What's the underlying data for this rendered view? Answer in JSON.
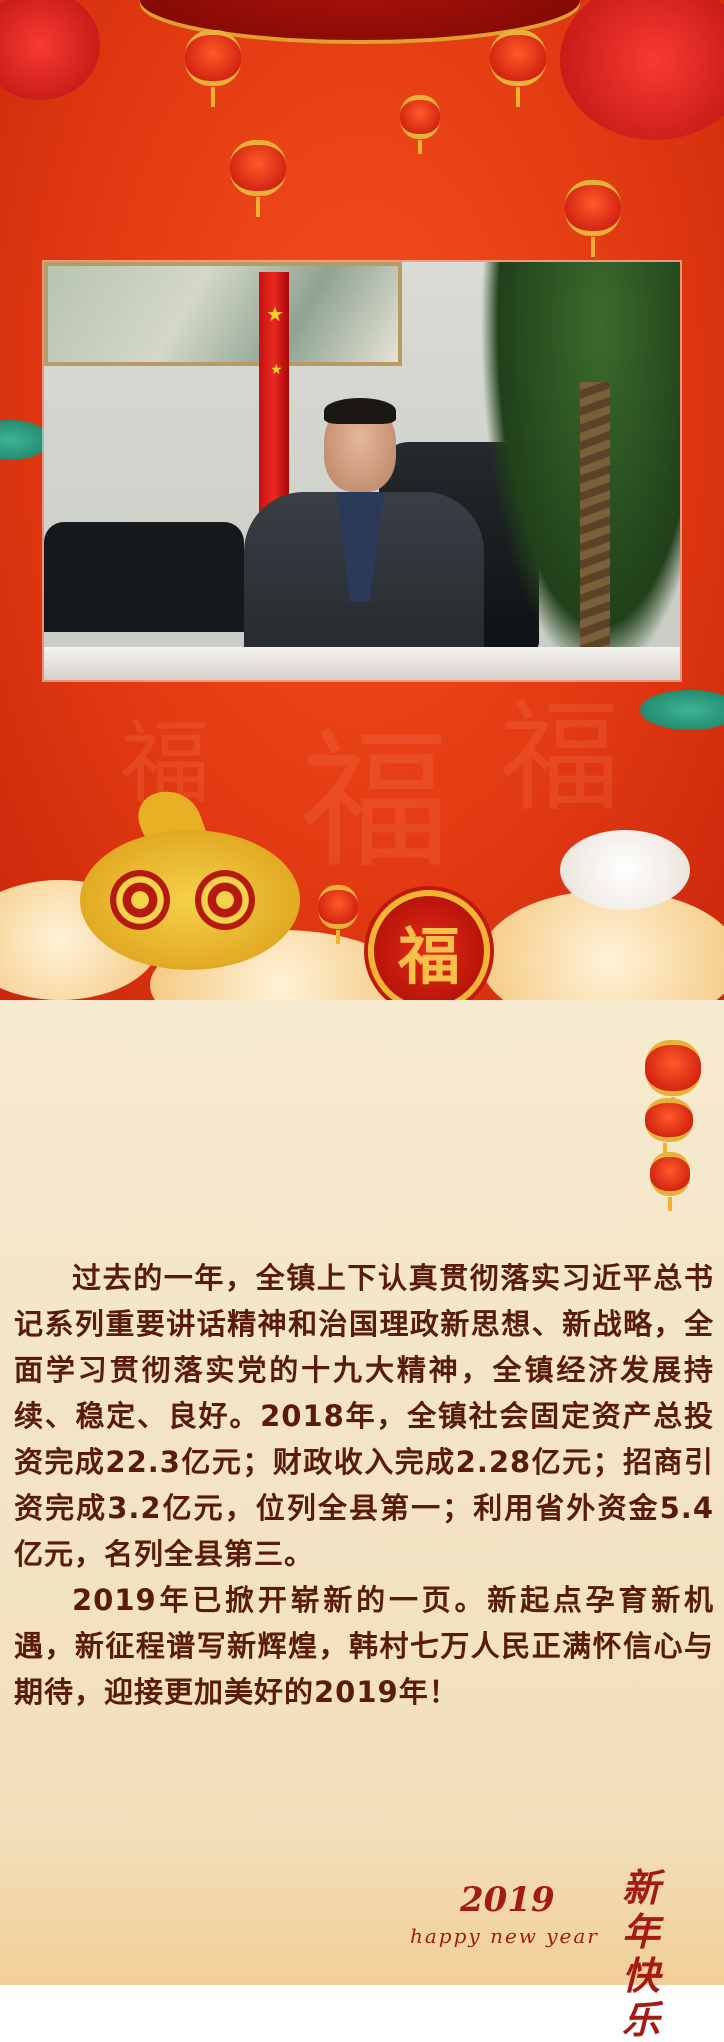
{
  "badge": {
    "fu_char": "福"
  },
  "article": {
    "paragraph_1": "过去的一年，全镇上下认真贯彻落实习近平总书记系列重要讲话精神和治国理政新思想、新战略，全面学习贯彻落实党的十九大精神，全镇经济发展持续、稳定、良好。2018年，全镇社会固定资产总投资完成22.3亿元；财政收入完成2.28亿元；招商引资完成3.2亿元，位列全县第一；利用省外资金5.4亿元，名列全县第三。",
    "paragraph_2": "2019年已掀开崭新的一页。新起点孕育新机遇，新征程谱写新辉煌，韩村七万人民正满怀信心与期待，迎接更加美好的2019年！"
  },
  "greeting": {
    "year": "2019",
    "subtitle": "happy new year",
    "calligraphy": "新年快乐"
  },
  "colors": {
    "festive_red": "#e23a12",
    "gold": "#f3b632",
    "parchment": "#f6ead0",
    "text": "#5a1c0a"
  }
}
